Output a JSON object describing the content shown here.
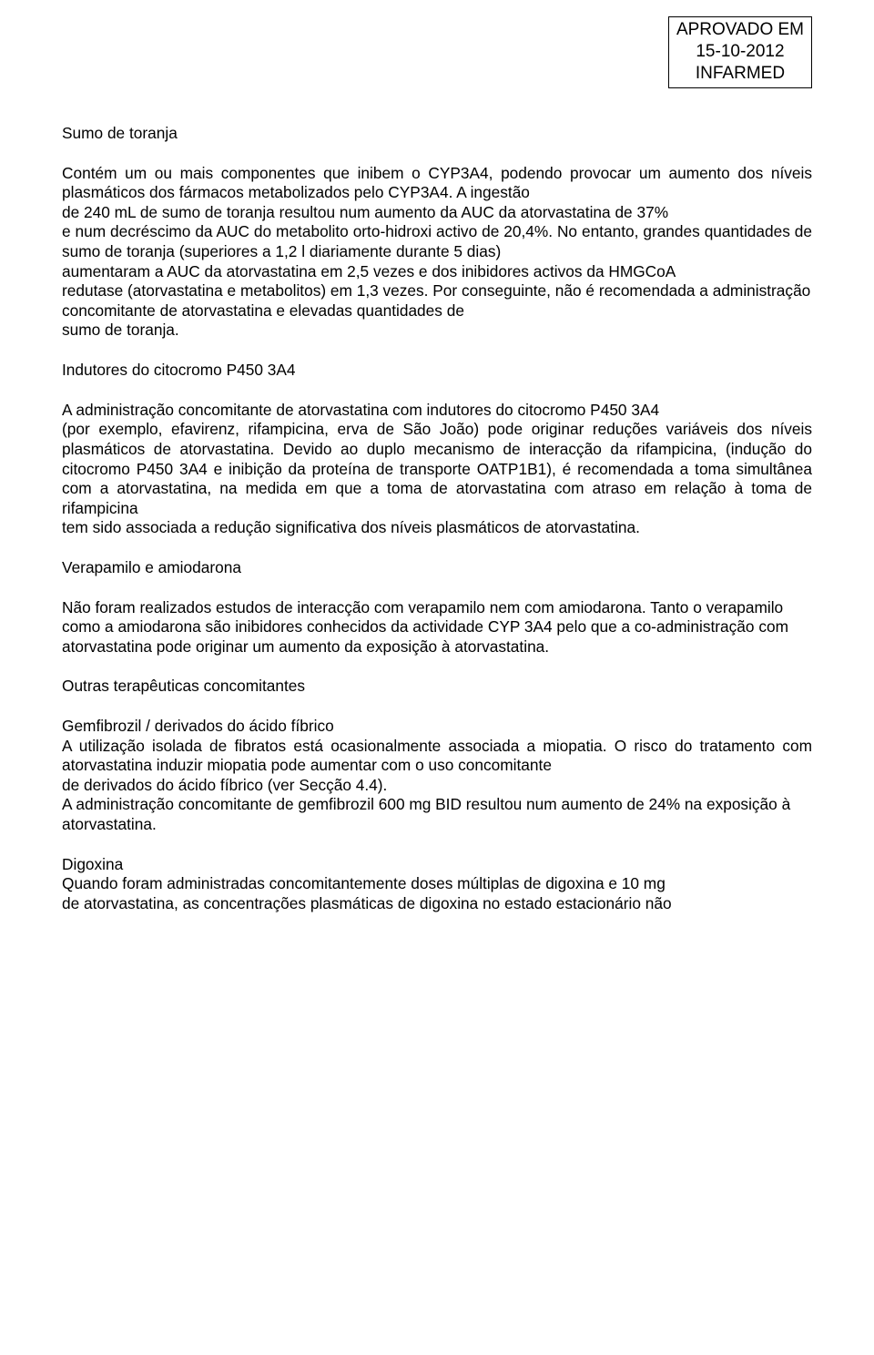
{
  "approval": {
    "line1": "APROVADO EM",
    "line2": "15-10-2012",
    "line3": "INFARMED"
  },
  "sections": {
    "s1": {
      "title": "Sumo de toranja",
      "p1": "Contém um ou mais componentes que inibem o CYP3A4, podendo provocar um aumento dos níveis plasmáticos dos fármacos metabolizados pelo CYP3A4. A ingestão",
      "p2": "de 240 mL de sumo de toranja resultou num aumento da AUC da atorvastatina de 37%",
      "p3": "e num decréscimo da AUC do metabolito orto-hidroxi activo de 20,4%. No entanto, grandes quantidades de sumo de toranja (superiores a 1,2 l diariamente durante 5 dias)",
      "p4": "aumentaram a AUC da atorvastatina em 2,5 vezes e dos inibidores activos da HMGCoA",
      "p5": "redutase (atorvastatina e metabolitos) em 1,3 vezes. Por conseguinte, não é recomendada a administração concomitante de atorvastatina e elevadas quantidades de",
      "p6": "sumo de toranja."
    },
    "s2": {
      "title": "Indutores do citocromo P450 3A4",
      "p1": "A administração concomitante de atorvastatina com indutores do citocromo P450 3A4",
      "p2": "(por exemplo, efavirenz, rifampicina, erva de São João) pode originar reduções variáveis dos níveis plasmáticos de atorvastatina. Devido ao duplo mecanismo de interacção da rifampicina, (indução do citocromo P450 3A4 e inibição da proteína de transporte OATP1B1), é recomendada a toma simultânea com a atorvastatina, na medida em que a toma de atorvastatina com atraso em relação à toma de rifampicina",
      "p3": "tem sido associada a redução significativa dos níveis plasmáticos de atorvastatina."
    },
    "s3": {
      "title": "Verapamilo e amiodarona",
      "p1": "Não foram realizados estudos de interacção com verapamilo nem com amiodarona. Tanto o verapamilo como a amiodarona são inibidores conhecidos da actividade CYP 3A4 pelo que a co-administração com atorvastatina pode originar um aumento da exposição à atorvastatina."
    },
    "s4": {
      "title": "Outras terapêuticas concomitantes",
      "sub1": "Gemfibrozil / derivados do ácido fíbrico",
      "p1": "A utilização isolada de fibratos está ocasionalmente associada a miopatia. O risco do tratamento com atorvastatina induzir miopatia pode aumentar com o uso concomitante",
      "p2": "de derivados do ácido fíbrico (ver Secção 4.4).",
      "p3": "A administração concomitante de gemfibrozil 600 mg BID resultou num aumento de 24% na exposição à atorvastatina.",
      "sub2": "Digoxina",
      "p4": "Quando foram administradas concomitantemente doses múltiplas de digoxina e 10 mg",
      "p5": "de atorvastatina, as concentrações plasmáticas de digoxina no estado estacionário não"
    }
  }
}
